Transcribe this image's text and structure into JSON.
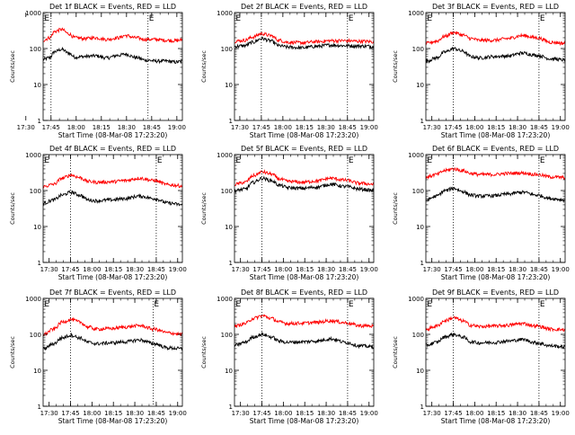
{
  "colors": {
    "background": "#ffffff",
    "axes": "#000000",
    "events": "#000000",
    "lld": "#ff0000"
  },
  "chart_data": [
    {
      "type": "line",
      "title": "Det 1f BLACK = Events, RED = LLD",
      "xlabel": "Start Time (08-Mar-08 17:23:20)",
      "ylabel": "Counts/sec",
      "yscale": "log",
      "ylim": [
        1,
        1000
      ],
      "xlim_minutes": [
        17.0,
        100.0
      ],
      "xtick_minutes": [
        6.7,
        21.7,
        36.7,
        51.7,
        66.7,
        81.7,
        96.7
      ],
      "xtick_labels": [
        "17:30",
        "17:45",
        "18:00",
        "18:15",
        "18:30",
        "18:45",
        "19:00"
      ],
      "ytick_values": [
        1,
        10,
        100,
        1000
      ],
      "ytick_labels": [
        "1",
        "10",
        "100",
        "1000"
      ],
      "vlines_minutes": [
        21.7,
        79.5
      ],
      "markers": [
        {
          "text": "E",
          "x_minute": 17.2
        },
        {
          "text": "E",
          "x_minute": 79.5
        }
      ],
      "series": [
        {
          "name": "Events",
          "color": "#000000",
          "minutes": [
            17,
            21,
            24,
            28,
            32,
            36,
            42,
            48,
            55,
            62,
            66,
            72,
            78,
            84,
            90,
            96,
            100
          ],
          "values": [
            50,
            56,
            82,
            95,
            75,
            58,
            60,
            63,
            55,
            65,
            70,
            57,
            48,
            45,
            45,
            42,
            44
          ]
        },
        {
          "name": "LLD",
          "color": "#ff0000",
          "minutes": [
            17,
            21,
            24,
            28,
            32,
            36,
            42,
            48,
            55,
            62,
            66,
            72,
            78,
            84,
            90,
            96,
            100
          ],
          "values": [
            170,
            200,
            300,
            340,
            260,
            200,
            190,
            200,
            180,
            200,
            230,
            200,
            180,
            180,
            170,
            165,
            175
          ]
        }
      ]
    },
    {
      "type": "line",
      "title": "Det 2f BLACK = Events, RED = LLD",
      "xlabel": "Start Time (08-Mar-08 17:23:20)",
      "ylabel": "Counts/sec",
      "yscale": "log",
      "ylim": [
        1,
        1000
      ],
      "xlim_minutes": [
        3.0,
        100.0
      ],
      "xtick_minutes": [
        6.7,
        21.7,
        36.7,
        51.7,
        66.7,
        81.7,
        96.7
      ],
      "xtick_labels": [
        "17:30",
        "17:45",
        "18:00",
        "18:15",
        "18:30",
        "18:45",
        "19:00"
      ],
      "ytick_values": [
        1,
        10,
        100,
        1000
      ],
      "ytick_labels": [
        "1",
        "10",
        "100",
        "1000"
      ],
      "vlines_minutes": [
        21.7,
        81.7
      ],
      "markers": [
        {
          "text": "E",
          "x_minute": 3.2
        },
        {
          "text": "E",
          "x_minute": 81.7
        }
      ],
      "series": [
        {
          "name": "Events",
          "color": "#000000",
          "minutes": [
            3,
            10,
            16,
            22,
            28,
            34,
            40,
            50,
            60,
            70,
            80,
            90,
            100
          ],
          "values": [
            115,
            120,
            150,
            190,
            165,
            120,
            110,
            105,
            115,
            125,
            120,
            118,
            115
          ]
        },
        {
          "name": "LLD",
          "color": "#ff0000",
          "minutes": [
            3,
            10,
            16,
            22,
            28,
            34,
            40,
            50,
            60,
            70,
            80,
            90,
            100
          ],
          "values": [
            160,
            170,
            210,
            260,
            230,
            170,
            150,
            145,
            155,
            165,
            165,
            160,
            155
          ]
        }
      ]
    },
    {
      "type": "line",
      "title": "Det 3f BLACK = Events, RED = LLD",
      "xlabel": "Start Time (08-Mar-08 17:23:20)",
      "ylabel": "Counts/sec",
      "yscale": "log",
      "ylim": [
        1,
        1000
      ],
      "xlim_minutes": [
        2.5,
        100.0
      ],
      "xtick_minutes": [
        6.7,
        21.7,
        36.7,
        51.7,
        66.7,
        81.7,
        96.7
      ],
      "xtick_labels": [
        "17:30",
        "17:45",
        "18:00",
        "18:15",
        "18:30",
        "18:45",
        "19:00"
      ],
      "ytick_values": [
        1,
        10,
        100,
        1000
      ],
      "ytick_labels": [
        "1",
        "10",
        "100",
        "1000"
      ],
      "vlines_minutes": [
        21.7,
        81.7
      ],
      "markers": [
        {
          "text": "E",
          "x_minute": 2.7
        },
        {
          "text": "E",
          "x_minute": 81.7
        }
      ],
      "series": [
        {
          "name": "Events",
          "color": "#000000",
          "minutes": [
            3,
            10,
            16,
            22,
            28,
            34,
            40,
            50,
            60,
            70,
            80,
            90,
            100
          ],
          "values": [
            45,
            55,
            80,
            100,
            85,
            60,
            55,
            60,
            62,
            75,
            65,
            52,
            48
          ]
        },
        {
          "name": "LLD",
          "color": "#ff0000",
          "minutes": [
            3,
            10,
            16,
            22,
            28,
            34,
            40,
            50,
            60,
            70,
            80,
            90,
            100
          ],
          "values": [
            140,
            160,
            220,
            280,
            240,
            190,
            170,
            170,
            190,
            230,
            200,
            150,
            140
          ]
        }
      ]
    },
    {
      "type": "line",
      "title": "Det 4f BLACK = Events, RED = LLD",
      "xlabel": "Start Time (08-Mar-08 17:23:20)",
      "ylabel": "Counts/sec",
      "yscale": "log",
      "ylim": [
        1,
        1000
      ],
      "xlim_minutes": [
        2.5,
        100.0
      ],
      "xtick_minutes": [
        6.7,
        21.7,
        36.7,
        51.7,
        66.7,
        81.7,
        96.7
      ],
      "xtick_labels": [
        "17:30",
        "17:45",
        "18:00",
        "18:15",
        "18:30",
        "18:45",
        "19:00"
      ],
      "ytick_values": [
        1,
        10,
        100,
        1000
      ],
      "ytick_labels": [
        "1",
        "10",
        "100",
        "1000"
      ],
      "vlines_minutes": [
        21.7,
        81.7
      ],
      "markers": [
        {
          "text": "E",
          "x_minute": 2.7
        },
        {
          "text": "E",
          "x_minute": 81.7
        }
      ],
      "series": [
        {
          "name": "Events",
          "color": "#000000",
          "minutes": [
            3,
            10,
            16,
            22,
            28,
            34,
            40,
            50,
            60,
            70,
            80,
            90,
            100
          ],
          "values": [
            45,
            55,
            75,
            90,
            75,
            55,
            52,
            55,
            60,
            70,
            60,
            45,
            40
          ]
        },
        {
          "name": "LLD",
          "color": "#ff0000",
          "minutes": [
            3,
            10,
            16,
            22,
            28,
            34,
            40,
            50,
            60,
            70,
            80,
            90,
            100
          ],
          "values": [
            130,
            150,
            220,
            270,
            230,
            180,
            170,
            175,
            190,
            220,
            190,
            145,
            135
          ]
        }
      ]
    },
    {
      "type": "line",
      "title": "Det 5f BLACK = Events, RED = LLD",
      "xlabel": "Start Time (08-Mar-08 17:23:20)",
      "ylabel": "Counts/sec",
      "yscale": "log",
      "ylim": [
        1,
        1000
      ],
      "xlim_minutes": [
        2.5,
        100.0
      ],
      "xtick_minutes": [
        6.7,
        21.7,
        36.7,
        51.7,
        66.7,
        81.7,
        96.7
      ],
      "xtick_labels": [
        "17:30",
        "17:45",
        "18:00",
        "18:15",
        "18:30",
        "18:45",
        "19:00"
      ],
      "ytick_values": [
        1,
        10,
        100,
        1000
      ],
      "ytick_labels": [
        "1",
        "10",
        "100",
        "1000"
      ],
      "vlines_minutes": [
        21.7,
        81.7
      ],
      "markers": [
        {
          "text": "E",
          "x_minute": 2.7
        },
        {
          "text": "E",
          "x_minute": 81.7
        }
      ],
      "series": [
        {
          "name": "Events",
          "color": "#000000",
          "minutes": [
            3,
            10,
            16,
            22,
            28,
            34,
            40,
            50,
            60,
            70,
            80,
            90,
            100
          ],
          "values": [
            100,
            110,
            170,
            220,
            190,
            140,
            120,
            115,
            125,
            150,
            130,
            110,
            100
          ]
        },
        {
          "name": "LLD",
          "color": "#ff0000",
          "minutes": [
            3,
            10,
            16,
            22,
            28,
            34,
            40,
            50,
            60,
            70,
            80,
            90,
            100
          ],
          "values": [
            150,
            170,
            260,
            330,
            290,
            210,
            180,
            170,
            185,
            220,
            195,
            160,
            150
          ]
        }
      ]
    },
    {
      "type": "line",
      "title": "Det 6f BLACK = Events, RED = LLD",
      "xlabel": "Start Time (08-Mar-08 17:23:20)",
      "ylabel": "Counts/sec",
      "yscale": "log",
      "ylim": [
        1,
        1000
      ],
      "xlim_minutes": [
        2.5,
        100.0
      ],
      "xtick_minutes": [
        6.7,
        21.7,
        36.7,
        51.7,
        66.7,
        81.7,
        96.7
      ],
      "xtick_labels": [
        "17:30",
        "17:45",
        "18:00",
        "18:15",
        "18:30",
        "18:45",
        "19:00"
      ],
      "ytick_values": [
        1,
        10,
        100,
        1000
      ],
      "ytick_labels": [
        "1",
        "10",
        "100",
        "1000"
      ],
      "vlines_minutes": [
        21.7,
        81.7
      ],
      "markers": [
        {
          "text": "E",
          "x_minute": 2.7
        },
        {
          "text": "E",
          "x_minute": 81.7
        }
      ],
      "series": [
        {
          "name": "Events",
          "color": "#000000",
          "minutes": [
            3,
            10,
            16,
            22,
            28,
            34,
            40,
            50,
            60,
            70,
            80,
            90,
            100
          ],
          "values": [
            55,
            70,
            100,
            115,
            95,
            75,
            70,
            72,
            80,
            90,
            75,
            60,
            55
          ]
        },
        {
          "name": "LLD",
          "color": "#ff0000",
          "minutes": [
            3,
            10,
            16,
            22,
            28,
            34,
            40,
            50,
            60,
            70,
            80,
            90,
            100
          ],
          "values": [
            240,
            280,
            360,
            400,
            360,
            300,
            280,
            280,
            300,
            310,
            280,
            240,
            230
          ]
        }
      ]
    },
    {
      "type": "line",
      "title": "Det 7f BLACK = Events, RED = LLD",
      "xlabel": "Start Time (08-Mar-08 17:23:20)",
      "ylabel": "Counts/sec",
      "yscale": "log",
      "ylim": [
        1,
        1000
      ],
      "xlim_minutes": [
        2.5,
        100.0
      ],
      "xtick_minutes": [
        6.7,
        21.7,
        36.7,
        51.7,
        66.7,
        81.7,
        96.7
      ],
      "xtick_labels": [
        "17:30",
        "17:45",
        "18:00",
        "18:15",
        "18:30",
        "18:45",
        "19:00"
      ],
      "ytick_values": [
        1,
        10,
        100,
        1000
      ],
      "ytick_labels": [
        "1",
        "10",
        "100",
        "1000"
      ],
      "vlines_minutes": [
        21.7,
        79.5
      ],
      "markers": [
        {
          "text": "E",
          "x_minute": 2.7
        },
        {
          "text": "E",
          "x_minute": 79.5
        }
      ],
      "series": [
        {
          "name": "Events",
          "color": "#000000",
          "minutes": [
            3,
            10,
            16,
            22,
            28,
            34,
            40,
            50,
            60,
            70,
            80,
            90,
            100
          ],
          "values": [
            40,
            55,
            80,
            95,
            80,
            60,
            55,
            58,
            62,
            70,
            55,
            42,
            40
          ]
        },
        {
          "name": "LLD",
          "color": "#ff0000",
          "minutes": [
            3,
            10,
            16,
            22,
            28,
            34,
            40,
            50,
            60,
            70,
            80,
            90,
            100
          ],
          "values": [
            100,
            140,
            220,
            260,
            220,
            160,
            140,
            145,
            160,
            175,
            140,
            110,
            100
          ]
        }
      ]
    },
    {
      "type": "line",
      "title": "Det 8f BLACK = Events, RED = LLD",
      "xlabel": "Start Time (08-Mar-08 17:23:20)",
      "ylabel": "Counts/sec",
      "yscale": "log",
      "ylim": [
        1,
        1000
      ],
      "xlim_minutes": [
        2.5,
        100.0
      ],
      "xtick_minutes": [
        6.7,
        21.7,
        36.7,
        51.7,
        66.7,
        81.7,
        96.7
      ],
      "xtick_labels": [
        "17:30",
        "17:45",
        "18:00",
        "18:15",
        "18:30",
        "18:45",
        "19:00"
      ],
      "ytick_values": [
        1,
        10,
        100,
        1000
      ],
      "ytick_labels": [
        "1",
        "10",
        "100",
        "1000"
      ],
      "vlines_minutes": [
        21.7,
        81.7
      ],
      "markers": [
        {
          "text": "E",
          "x_minute": 2.7
        },
        {
          "text": "E",
          "x_minute": 81.7
        }
      ],
      "series": [
        {
          "name": "Events",
          "color": "#000000",
          "minutes": [
            3,
            10,
            16,
            22,
            28,
            34,
            40,
            50,
            60,
            70,
            80,
            90,
            100
          ],
          "values": [
            50,
            60,
            85,
            100,
            85,
            65,
            60,
            62,
            65,
            75,
            60,
            48,
            45
          ]
        },
        {
          "name": "LLD",
          "color": "#ff0000",
          "minutes": [
            3,
            10,
            16,
            22,
            28,
            34,
            40,
            50,
            60,
            70,
            80,
            90,
            100
          ],
          "values": [
            170,
            200,
            280,
            330,
            280,
            220,
            200,
            205,
            215,
            240,
            210,
            175,
            170
          ]
        }
      ]
    },
    {
      "type": "line",
      "title": "Det 9f BLACK = Events, RED = LLD",
      "xlabel": "Start Time (08-Mar-08 17:23:20)",
      "ylabel": "Counts/sec",
      "yscale": "log",
      "ylim": [
        1,
        1000
      ],
      "xlim_minutes": [
        2.5,
        100.0
      ],
      "xtick_minutes": [
        6.7,
        21.7,
        36.7,
        51.7,
        66.7,
        81.7,
        96.7
      ],
      "xtick_labels": [
        "17:30",
        "17:45",
        "18:00",
        "18:15",
        "18:30",
        "18:45",
        "19:00"
      ],
      "ytick_values": [
        1,
        10,
        100,
        1000
      ],
      "ytick_labels": [
        "1",
        "10",
        "100",
        "1000"
      ],
      "vlines_minutes": [
        21.7,
        81.7
      ],
      "markers": [
        {
          "text": "E",
          "x_minute": 2.7
        },
        {
          "text": "E",
          "x_minute": 81.7
        }
      ],
      "series": [
        {
          "name": "Events",
          "color": "#000000",
          "minutes": [
            3,
            10,
            16,
            22,
            28,
            34,
            40,
            50,
            60,
            70,
            80,
            90,
            100
          ],
          "values": [
            50,
            60,
            85,
            100,
            85,
            62,
            58,
            60,
            65,
            72,
            58,
            48,
            45
          ]
        },
        {
          "name": "LLD",
          "color": "#ff0000",
          "minutes": [
            3,
            10,
            16,
            22,
            28,
            34,
            40,
            50,
            60,
            70,
            80,
            90,
            100
          ],
          "values": [
            140,
            170,
            240,
            290,
            240,
            180,
            165,
            170,
            180,
            200,
            170,
            140,
            135
          ]
        }
      ]
    }
  ]
}
